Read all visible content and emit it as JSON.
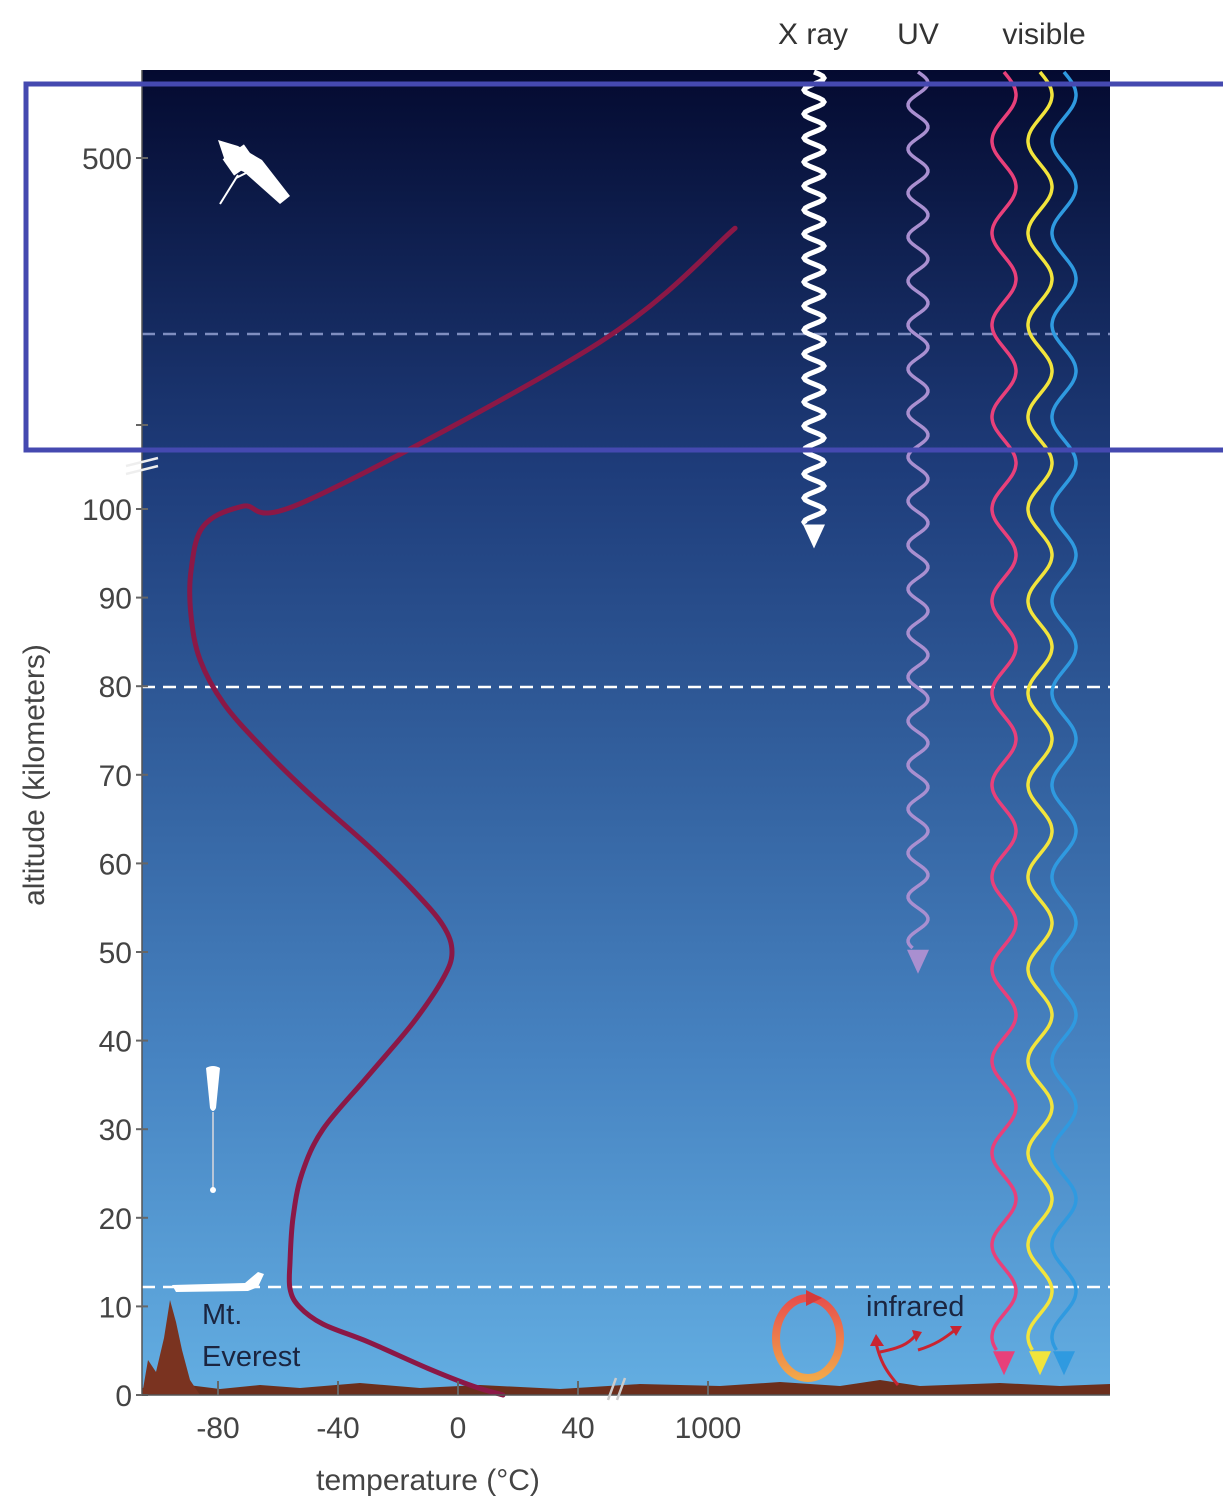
{
  "chart_data": {
    "type": "line",
    "title": "",
    "xlabel": "temperature (°C)",
    "ylabel": "altitude (kilometers)",
    "x_ticks": [
      "-80",
      "-40",
      "0",
      "40",
      "1000"
    ],
    "y_ticks": [
      "0",
      "10",
      "20",
      "30",
      "40",
      "50",
      "60",
      "70",
      "80",
      "90",
      "100",
      "500"
    ],
    "x_axis_break_after": 40,
    "y_axis_break_after": 100,
    "series": [
      {
        "name": "",
        "color": "#8b1846",
        "points": [
          {
            "x": 15,
            "y": 0
          },
          {
            "x": 5,
            "y": 1
          },
          {
            "x": -10,
            "y": 3
          },
          {
            "x": -30,
            "y": 6
          },
          {
            "x": -45,
            "y": 8
          },
          {
            "x": -53,
            "y": 10
          },
          {
            "x": -56,
            "y": 12
          },
          {
            "x": -56,
            "y": 15
          },
          {
            "x": -55,
            "y": 20
          },
          {
            "x": -52,
            "y": 25
          },
          {
            "x": -45,
            "y": 30
          },
          {
            "x": -30,
            "y": 36
          },
          {
            "x": -15,
            "y": 42
          },
          {
            "x": -5,
            "y": 47
          },
          {
            "x": -2,
            "y": 50
          },
          {
            "x": -5,
            "y": 53
          },
          {
            "x": -15,
            "y": 57
          },
          {
            "x": -30,
            "y": 62
          },
          {
            "x": -50,
            "y": 68
          },
          {
            "x": -65,
            "y": 73
          },
          {
            "x": -78,
            "y": 78
          },
          {
            "x": -86,
            "y": 83
          },
          {
            "x": -89,
            "y": 88
          },
          {
            "x": -89,
            "y": 93
          },
          {
            "x": -85,
            "y": 98
          },
          {
            "x": -72,
            "y": 103
          },
          {
            "x": -50,
            "y": 110
          },
          {
            "x": 200,
            "y": 290
          },
          {
            "x": 1200,
            "y": 420
          }
        ]
      }
    ],
    "reference_lines_km": [
      12,
      80,
      400
    ],
    "radiation_labels": [
      "X ray",
      "UV",
      "visible"
    ],
    "radiation_colors": {
      "xray": "#ffffff",
      "uv": "#a98fd0",
      "visible": [
        "#e8407a",
        "#f2e43c",
        "#2f9ae0"
      ]
    },
    "penetration_depth_km": {
      "X ray": 96,
      "UV": 48,
      "visible": 2
    },
    "annotations": [
      "Mt.",
      "Everest",
      "infrared"
    ],
    "sky_gradient": [
      "#040a30",
      "#1e3c7a",
      "#4784c2",
      "#63aee2"
    ],
    "highlight_box_color": "#4549b0"
  }
}
